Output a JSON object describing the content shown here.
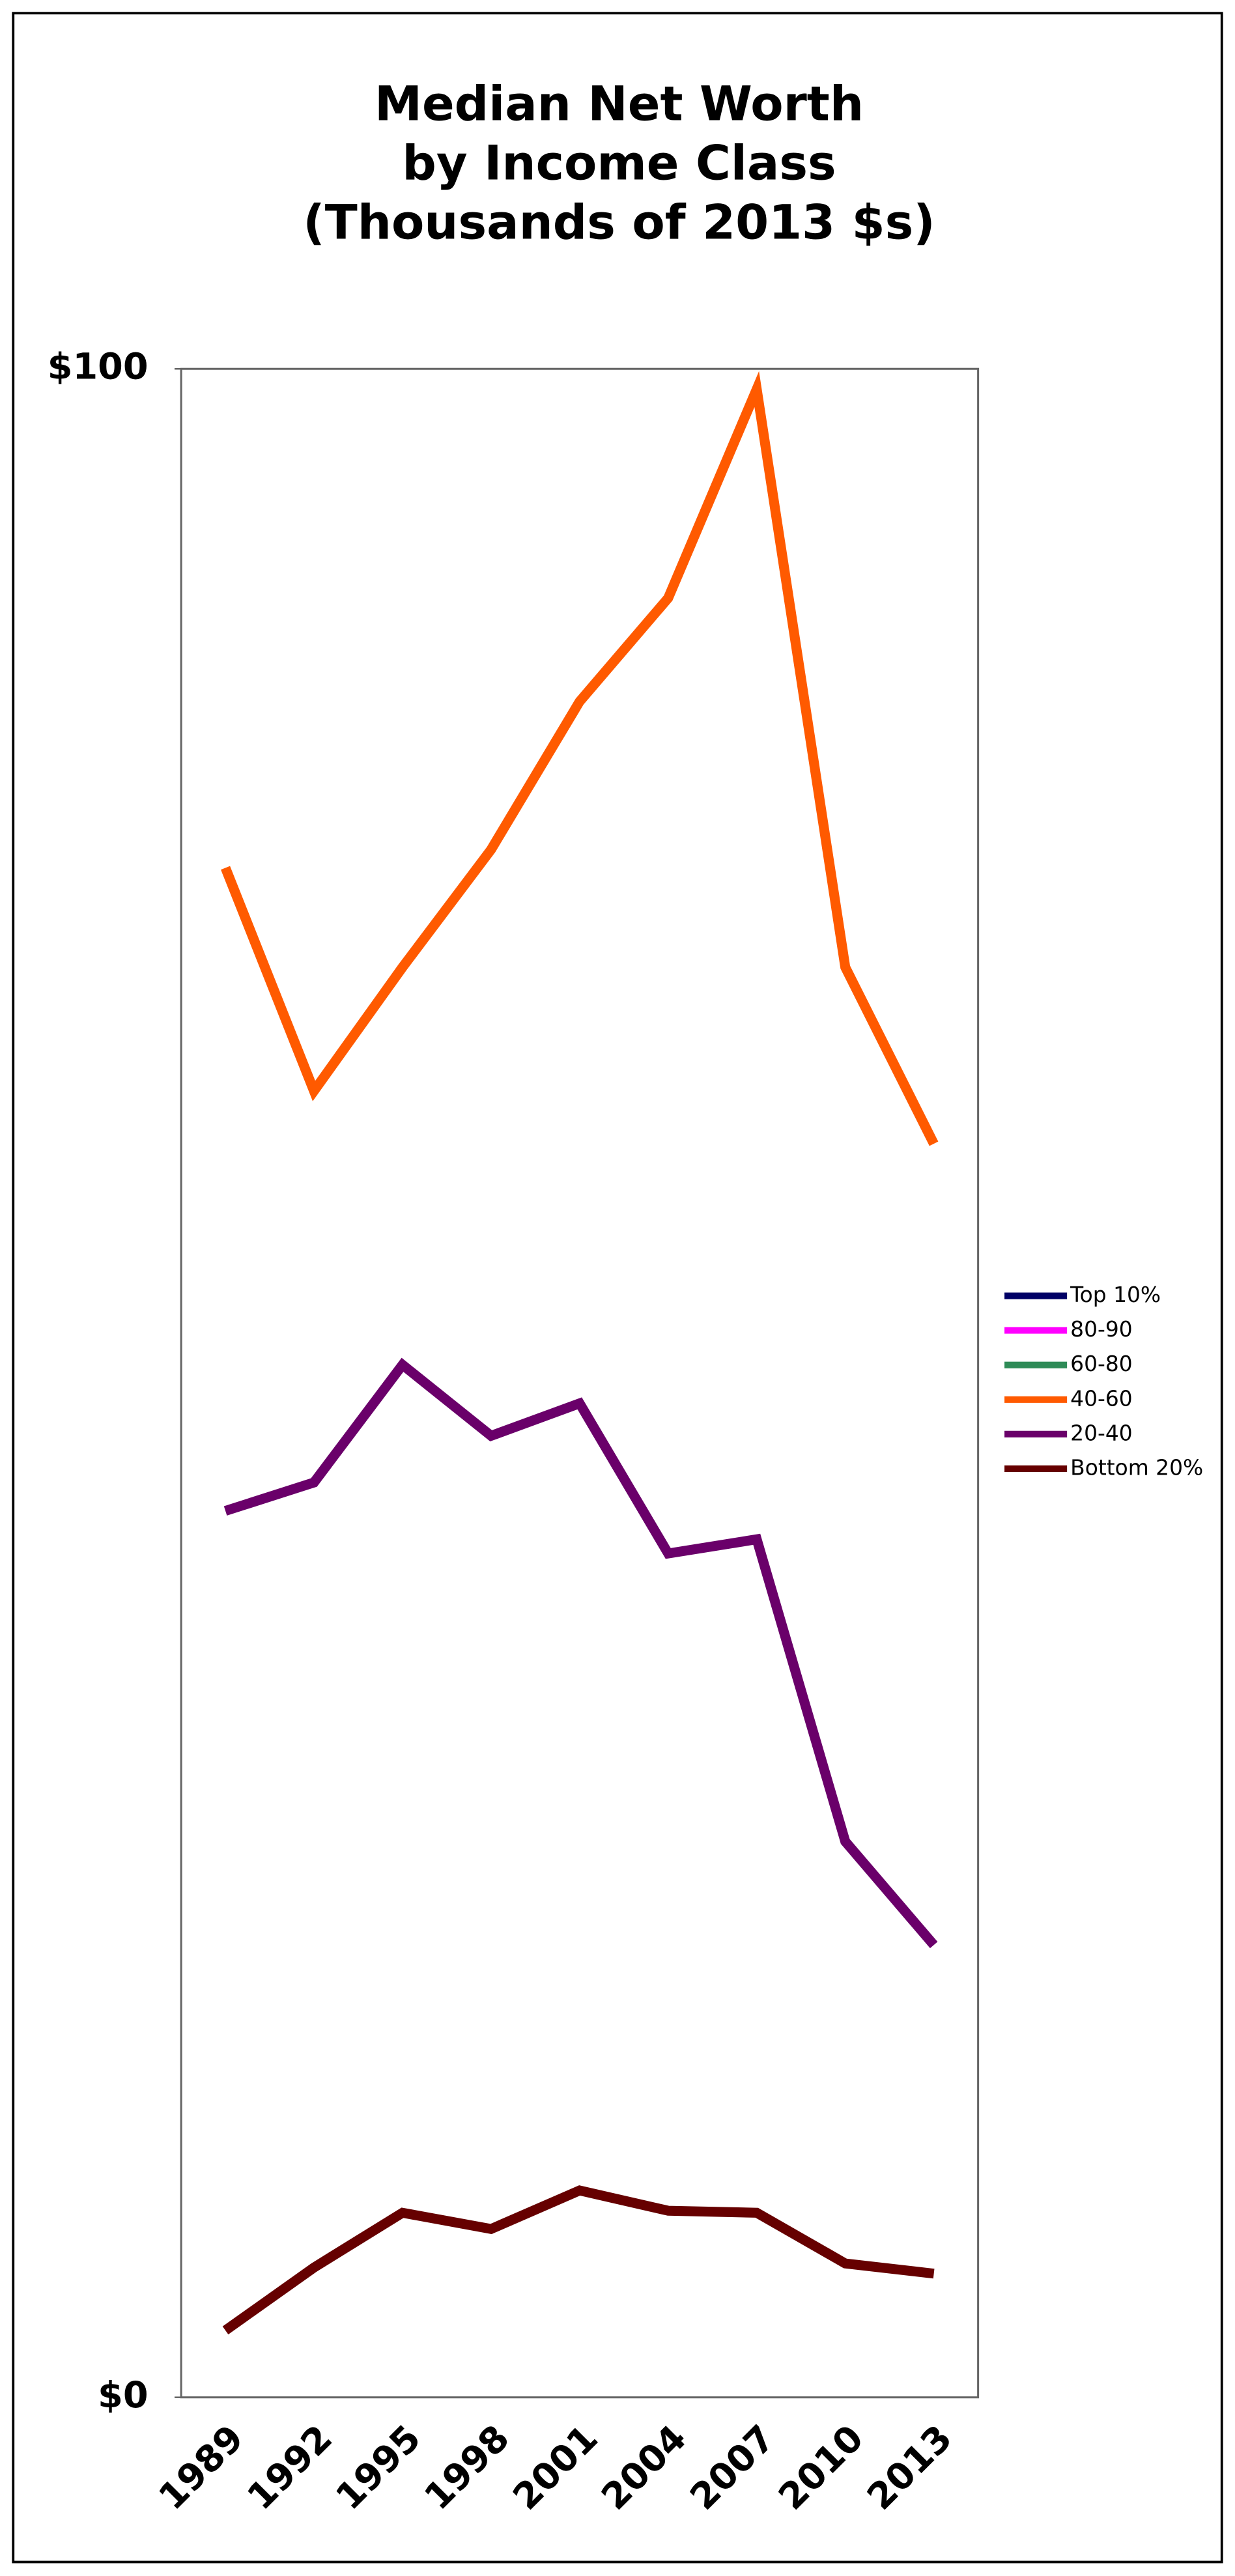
{
  "chart_data": {
    "type": "line",
    "title": [
      "Median Net Worth",
      "by Income Class",
      "(Thousands of 2013 $s)"
    ],
    "categories": [
      "1989",
      "1992",
      "1995",
      "1998",
      "2001",
      "2004",
      "2007",
      "2010",
      "2013"
    ],
    "series": [
      {
        "name": "Top 10%",
        "color": "#000066",
        "values": [
          null,
          null,
          null,
          null,
          null,
          null,
          null,
          null,
          null
        ]
      },
      {
        "name": "80-90",
        "color": "#ff00ff",
        "values": [
          null,
          null,
          null,
          null,
          null,
          null,
          null,
          null,
          null
        ]
      },
      {
        "name": "60-80",
        "color": "#2e8b57",
        "values": [
          null,
          null,
          null,
          null,
          null,
          null,
          null,
          null,
          null
        ]
      },
      {
        "name": "40-60",
        "color": "#ff5a00",
        "values": [
          75.4,
          64.4,
          70.5,
          76.3,
          83.6,
          88.7,
          99.0,
          70.5,
          61.8
        ]
      },
      {
        "name": "20-40",
        "color": "#6a006a",
        "values": [
          43.7,
          45.1,
          50.9,
          47.4,
          49.0,
          41.6,
          42.3,
          27.4,
          22.3
        ]
      },
      {
        "name": "Bottom 20%",
        "color": "#660000",
        "values": [
          3.3,
          6.4,
          9.1,
          8.3,
          10.2,
          9.2,
          9.1,
          6.6,
          6.1
        ]
      }
    ],
    "ylim": [
      0,
      100
    ],
    "yticks": [
      {
        "value": 0,
        "label": "$0"
      },
      {
        "value": 100,
        "label": "$100"
      }
    ],
    "legend": "right"
  }
}
